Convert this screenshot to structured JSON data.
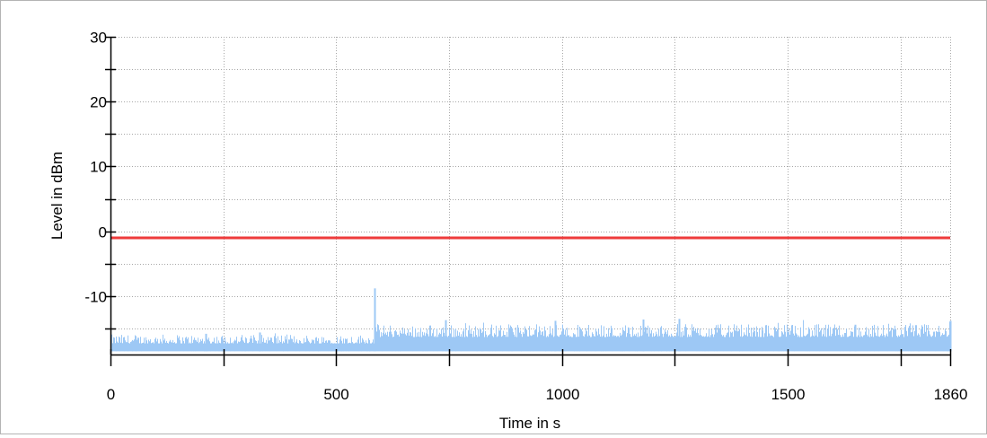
{
  "chart_data": {
    "type": "line",
    "xlabel": "Time in s",
    "ylabel": "Level in dBm",
    "xlim": [
      0,
      1860
    ],
    "ylim": [
      -19,
      30
    ],
    "x_tick_labels": [
      "0",
      "500",
      "1000",
      "1500",
      "1860"
    ],
    "x_tick_values": [
      0,
      500,
      1000,
      1500,
      1860
    ],
    "x_minor_ticks": [
      250,
      750,
      1250,
      1750
    ],
    "y_tick_labels": [
      "30",
      "20",
      "10",
      "0",
      "-10"
    ],
    "y_tick_values": [
      30,
      20,
      10,
      0,
      -10
    ],
    "y_minor_ticks": [
      25,
      15,
      5,
      -5,
      -15
    ],
    "grid": true,
    "threshold": {
      "value": -1,
      "color": "#ee3b3b"
    },
    "series": [
      {
        "color": "#9dc8f5",
        "segments": [
          {
            "x": [
              0,
              585
            ],
            "low": -18.5,
            "high": -17.3,
            "peak_mean": -16.6
          },
          {
            "x": [
              585,
              1860
            ],
            "low": -18.5,
            "high": -16.3,
            "peak_mean": -15.3
          }
        ],
        "spikes": [
          {
            "x": 585,
            "y": -8.8
          },
          {
            "x": 743,
            "y": -13.7
          },
          {
            "x": 985,
            "y": -13.8
          },
          {
            "x": 1180,
            "y": -13.6
          },
          {
            "x": 1260,
            "y": -13.5
          },
          {
            "x": 1860,
            "y": -13.8
          },
          {
            "x": 210,
            "y": -15.8
          },
          {
            "x": 330,
            "y": -15.6
          },
          {
            "x": 1650,
            "y": -14.4
          }
        ]
      }
    ]
  }
}
